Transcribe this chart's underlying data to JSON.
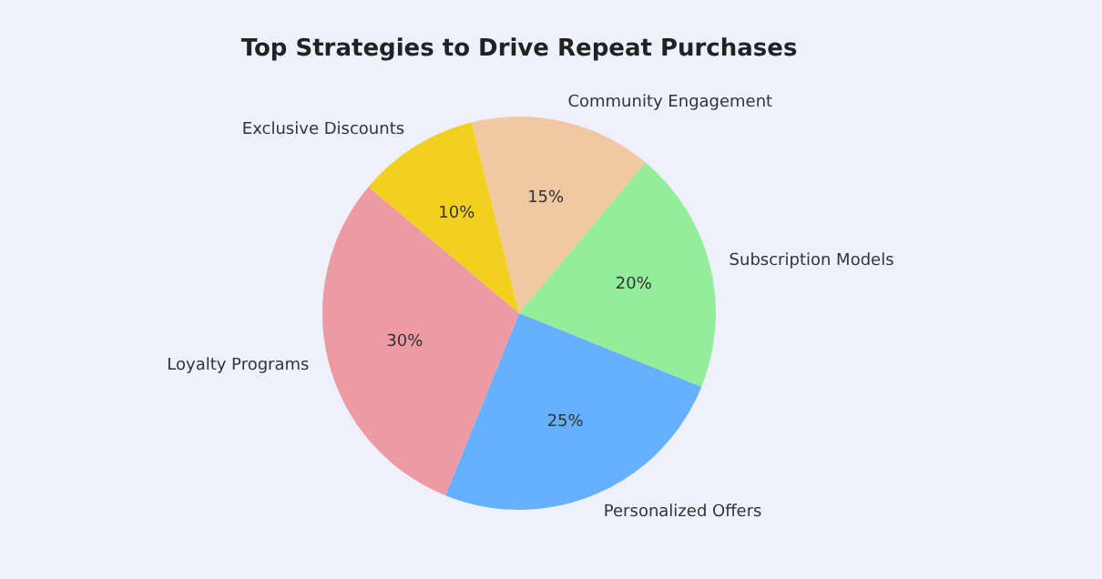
{
  "chart_data": {
    "type": "pie",
    "title": "Top Strategies to Drive Repeat Purchases",
    "categories": [
      "Community Engagement",
      "Subscription Models",
      "Personalized Offers",
      "Loyalty Programs",
      "Exclusive Discounts"
    ],
    "values": [
      15,
      20,
      25,
      30,
      10
    ],
    "colors": [
      "#f0c8a2",
      "#92ee98",
      "#66b0ff",
      "#ee9aa4",
      "#f2d01e"
    ],
    "value_labels": [
      "15%",
      "20%",
      "25%",
      "30%",
      "10%"
    ],
    "legend": false
  }
}
